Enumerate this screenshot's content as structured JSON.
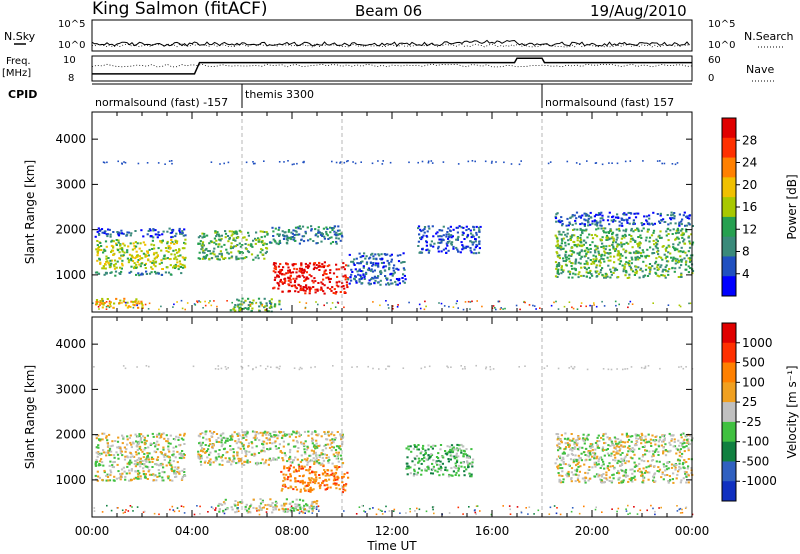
{
  "header": {
    "station": "King Salmon (fitACF)",
    "beam": "Beam 06",
    "date": "19/Aug/2010"
  },
  "top_panels": {
    "nsky_label": "N.Sky",
    "nsky_ticks": [
      "10^5",
      "10^0"
    ],
    "nsearch_label": "N.Search",
    "nsearch_ticks": [
      "10^5",
      "10^0"
    ],
    "freq_label": "Freq.",
    "freq_unit": "[MHz]",
    "freq_ticks": [
      "10",
      "8"
    ],
    "nave_label": "Nave",
    "nave_ticks": [
      "60",
      "0"
    ],
    "cpid_label": "CPID",
    "cpid_segments": [
      {
        "label": "normalsound (fast) -157",
        "start": 0,
        "end": 6
      },
      {
        "label": "themis 3300",
        "start": 6,
        "end": 18
      },
      {
        "label": "normalsound (fast) 157",
        "start": 18,
        "end": 24
      }
    ],
    "freq_series": {
      "x": [
        0,
        4.1,
        4.3,
        6,
        16.9,
        17.0,
        18.0,
        18.1,
        24
      ],
      "y": [
        8.7,
        8.7,
        10,
        10,
        10,
        10.5,
        10.5,
        10,
        10
      ]
    }
  },
  "chart_data": [
    {
      "type": "heatmap",
      "name": "power",
      "ylabel": "Slant Range [km]",
      "y_ticks": [
        "4000",
        "3000",
        "2000",
        "1000"
      ],
      "y_tick_values": [
        4000,
        3000,
        2000,
        1000
      ],
      "ylim": [
        180,
        4600
      ],
      "xlim": [
        0,
        24
      ],
      "colorbar": {
        "label": "Power [dB]",
        "ticks": [
          "28",
          "24",
          "20",
          "16",
          "12",
          "8",
          "4"
        ],
        "colors": [
          "#0000ff",
          "#2050c0",
          "#3a8a7a",
          "#26a050",
          "#a8c800",
          "#f0c000",
          "#ff8000",
          "#ff3000",
          "#e00000"
        ]
      },
      "regions": [
        {
          "x": [
            0.1,
            3.7
          ],
          "y": [
            1150,
            1800
          ],
          "level": 4
        },
        {
          "x": [
            0.1,
            3.7
          ],
          "y": [
            1000,
            1100
          ],
          "level": 2
        },
        {
          "x": [
            0.1,
            2.0
          ],
          "y": [
            280,
            500
          ],
          "level": 5
        },
        {
          "x": [
            0.1,
            3.7
          ],
          "y": [
            1850,
            2050
          ],
          "level": 1
        },
        {
          "x": [
            4.2,
            7.0
          ],
          "y": [
            1350,
            2000
          ],
          "level": 3
        },
        {
          "x": [
            7.0,
            10.0
          ],
          "y": [
            1700,
            2100
          ],
          "level": 2
        },
        {
          "x": [
            7.2,
            10.2
          ],
          "y": [
            600,
            1300
          ],
          "level": 8
        },
        {
          "x": [
            5.5,
            7.5
          ],
          "y": [
            200,
            500
          ],
          "level": 3
        },
        {
          "x": [
            10.2,
            12.5
          ],
          "y": [
            800,
            1500
          ],
          "level": 1
        },
        {
          "x": [
            13.0,
            15.5
          ],
          "y": [
            1500,
            2100
          ],
          "level": 1
        },
        {
          "x": [
            18.5,
            24.0
          ],
          "y": [
            950,
            2050
          ],
          "level": 3
        },
        {
          "x": [
            18.5,
            24.0
          ],
          "y": [
            2100,
            2400
          ],
          "level": 1
        }
      ]
    },
    {
      "type": "heatmap",
      "name": "velocity",
      "xlabel": "Time UT",
      "ylabel": "Slant Range [km]",
      "x_ticks": [
        "00:00",
        "04:00",
        "08:00",
        "12:00",
        "16:00",
        "20:00",
        "00:00"
      ],
      "x_tick_values": [
        0,
        4,
        8,
        12,
        16,
        20,
        24
      ],
      "y_ticks": [
        "4000",
        "3000",
        "2000",
        "1000"
      ],
      "y_tick_values": [
        4000,
        3000,
        2000,
        1000
      ],
      "ylim": [
        180,
        4600
      ],
      "xlim": [
        0,
        24
      ],
      "colorbar": {
        "label": "Velocity [m s⁻¹]",
        "ticks": [
          "1000",
          "500",
          "100",
          "25",
          "-25",
          "-100",
          "-500",
          "-1000"
        ],
        "colors": [
          "#1030c0",
          "#3060c0",
          "#108040",
          "#40c040",
          "#c0c0c0",
          "#f0a020",
          "#ff8000",
          "#ff3000",
          "#e00000"
        ]
      },
      "regions": [
        {
          "x": [
            0.1,
            3.7
          ],
          "y": [
            1000,
            2050
          ],
          "level": 4
        },
        {
          "x": [
            4.2,
            10.0
          ],
          "y": [
            1350,
            2100
          ],
          "level": 4
        },
        {
          "x": [
            7.5,
            10.2
          ],
          "y": [
            750,
            1350
          ],
          "level": 6
        },
        {
          "x": [
            12.5,
            15.2
          ],
          "y": [
            1100,
            1800
          ],
          "level": 3
        },
        {
          "x": [
            18.5,
            24.0
          ],
          "y": [
            950,
            2050
          ],
          "level": 4
        },
        {
          "x": [
            5.0,
            9.0
          ],
          "y": [
            300,
            600
          ],
          "level": 4
        }
      ]
    }
  ]
}
